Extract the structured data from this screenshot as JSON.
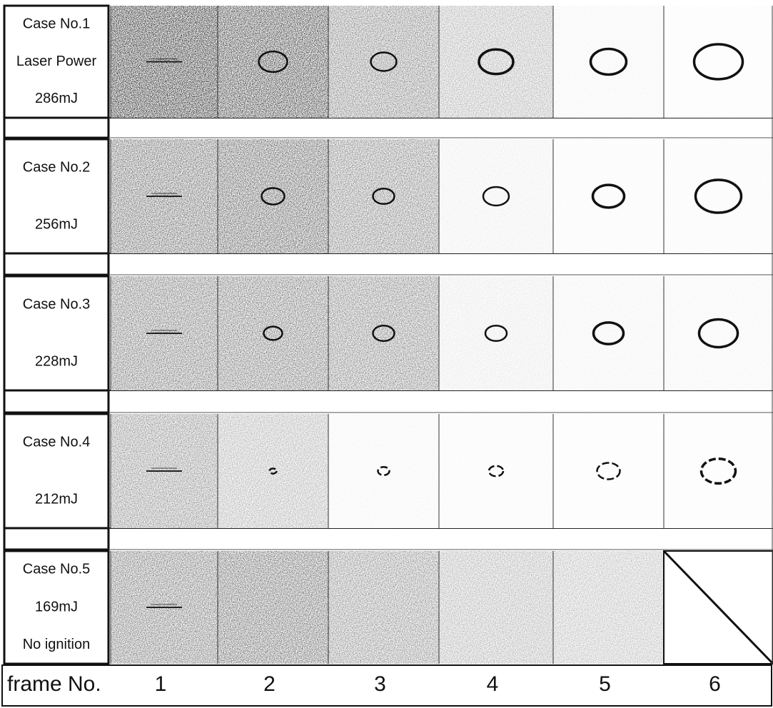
{
  "cases": [
    {
      "label": [
        "Case No.1",
        "Laser Power",
        "286mJ"
      ]
    },
    {
      "label": [
        "Case No.2",
        "256mJ"
      ]
    },
    {
      "label": [
        "Case No.3",
        "228mJ"
      ]
    },
    {
      "label": [
        "Case No.4",
        "212mJ"
      ]
    },
    {
      "label": [
        "Case No.5",
        "169mJ",
        "No ignition"
      ]
    }
  ],
  "footer": {
    "label": "frame No.",
    "frames": [
      "1",
      "2",
      "3",
      "4",
      "5",
      "6"
    ]
  }
}
